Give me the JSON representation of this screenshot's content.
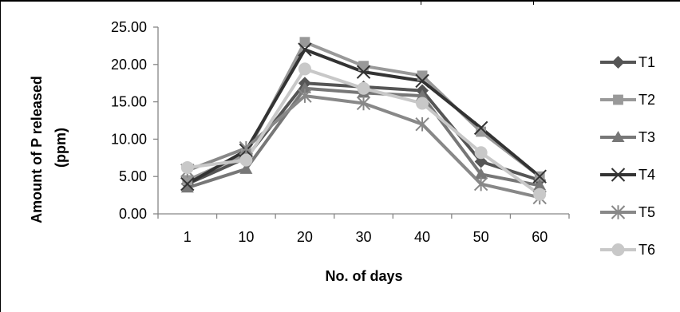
{
  "chart_data": {
    "type": "line",
    "title": "",
    "xlabel": "No. of days",
    "ylabel": "Amount of P released (ppm)",
    "ylabel_lines": [
      "Amount of P released",
      "(ppm)"
    ],
    "categories": [
      "1",
      "10",
      "20",
      "30",
      "40",
      "50",
      "60"
    ],
    "ylim": [
      0,
      25
    ],
    "yticks": [
      "0.00",
      "5.00",
      "10.00",
      "15.00",
      "20.00",
      "25.00"
    ],
    "grid": false,
    "legend_position": "right",
    "series": [
      {
        "name": "T1",
        "marker": "diamond",
        "color": "#555555",
        "values": [
          4.0,
          7.5,
          17.5,
          17.0,
          16.5,
          7.0,
          4.5
        ]
      },
      {
        "name": "T2",
        "marker": "square",
        "color": "#999999",
        "values": [
          4.5,
          8.0,
          23.0,
          19.8,
          18.5,
          11.0,
          5.0
        ]
      },
      {
        "name": "T3",
        "marker": "triangle",
        "color": "#777777",
        "values": [
          3.5,
          6.0,
          16.8,
          16.2,
          15.8,
          5.3,
          3.8
        ]
      },
      {
        "name": "T4",
        "marker": "x",
        "color": "#333333",
        "values": [
          4.0,
          8.5,
          22.0,
          19.0,
          17.8,
          11.5,
          5.0
        ]
      },
      {
        "name": "T5",
        "marker": "star",
        "color": "#888888",
        "values": [
          5.8,
          8.8,
          15.8,
          14.8,
          12.0,
          4.0,
          2.2
        ]
      },
      {
        "name": "T6",
        "marker": "circle",
        "color": "#c8c8c8",
        "values": [
          6.2,
          7.2,
          19.4,
          16.8,
          14.8,
          8.2,
          2.6
        ]
      }
    ]
  }
}
